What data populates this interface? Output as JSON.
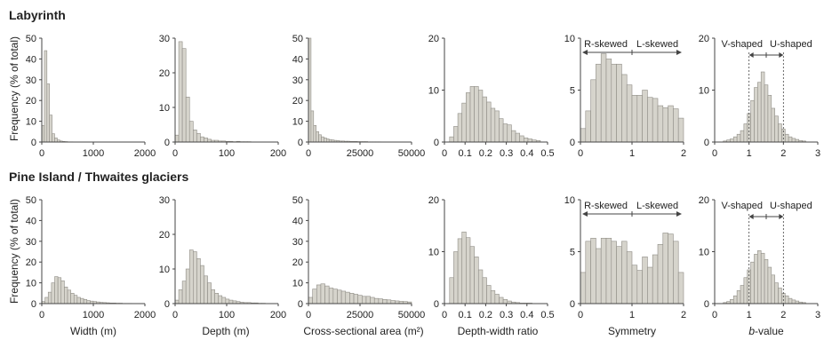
{
  "colors": {
    "bar_fill": "#d6d4cc",
    "bar_stroke": "#8f8d86",
    "axis": "#444444"
  },
  "rows": [
    {
      "title": "Labyrinth"
    },
    {
      "title": "Pine Island / Thwaites glaciers"
    }
  ],
  "ylabel": "Frequency (% of total)",
  "annotations": {
    "r_skewed": "R-skewed",
    "l_skewed": "L-skewed",
    "v_shaped": "V-shaped",
    "u_shaped": "U-shaped"
  },
  "columns": [
    {
      "xlabel": "Width (m)",
      "xlim": [
        0,
        2000
      ],
      "xticks": [
        "0",
        "1000",
        "2000"
      ],
      "ylim": [
        0,
        50
      ],
      "yticks": [
        "0",
        "10",
        "20",
        "30",
        "40",
        "50"
      ]
    },
    {
      "xlabel": "Depth (m)",
      "xlim": [
        0,
        200
      ],
      "xticks": [
        "0",
        "100",
        "200"
      ],
      "ylim": [
        0,
        30
      ],
      "yticks": [
        "0",
        "10",
        "20",
        "30"
      ]
    },
    {
      "xlabel": "Cross-sectional area (m²)",
      "xlim": [
        0,
        50000
      ],
      "xticks": [
        "0",
        "25000",
        "50000"
      ],
      "ylim": [
        0,
        50
      ],
      "yticks": [
        "0",
        "10",
        "20",
        "30",
        "40",
        "50"
      ]
    },
    {
      "xlabel": "Depth-width ratio",
      "xlim": [
        0,
        0.5
      ],
      "xticks": [
        "0",
        "0.1",
        "0.2",
        "0.3",
        "0.4",
        "0.5"
      ],
      "ylim": [
        0,
        20
      ],
      "yticks": [
        "0",
        "10",
        "20"
      ]
    },
    {
      "xlabel": "Symmetry",
      "xlim": [
        0,
        2
      ],
      "xticks": [
        "0",
        "1",
        "2"
      ],
      "ylim": [
        0,
        10
      ],
      "yticks": [
        "0",
        "5",
        "10"
      ]
    },
    {
      "xlabel": "b-value",
      "xlabel_italic": "b",
      "xlabel_rest": "-value",
      "xlim": [
        0,
        3
      ],
      "xticks": [
        "0",
        "1",
        "2",
        "3"
      ],
      "ylim": [
        0,
        20
      ],
      "yticks": [
        "0",
        "10",
        "20"
      ]
    }
  ],
  "chart_data": [
    {
      "type": "bar",
      "title": "Labyrinth",
      "xlabel": "Width (m)",
      "ylabel": "Frequency (% of total)",
      "xlim": [
        0,
        2000
      ],
      "ylim": [
        0,
        50
      ],
      "bin_start": 0,
      "bin_width": 50,
      "values": [
        8,
        44,
        28,
        13,
        4,
        2,
        1,
        0.5,
        0.3,
        0.2,
        0.1,
        0.1
      ]
    },
    {
      "type": "bar",
      "title": "Labyrinth",
      "xlabel": "Depth (m)",
      "ylabel": "Frequency (% of total)",
      "xlim": [
        0,
        200
      ],
      "ylim": [
        0,
        30
      ],
      "bin_start": 0,
      "bin_width": 7,
      "values": [
        2,
        29,
        27,
        13,
        6,
        3.5,
        2.5,
        1.5,
        1.2,
        0.8,
        0.5,
        0.5,
        0.3,
        0.3,
        0.2,
        0.2,
        0.1,
        0.2,
        0.1,
        0.1,
        0.1
      ]
    },
    {
      "type": "bar",
      "title": "Labyrinth",
      "xlabel": "Cross-sectional area (m²)",
      "ylabel": "Frequency (% of total)",
      "xlim": [
        0,
        50000
      ],
      "ylim": [
        0,
        50
      ],
      "bin_start": 0,
      "bin_width": 1250,
      "values": [
        50,
        15,
        8,
        5,
        3.5,
        2.5,
        2,
        1.5,
        1.2,
        1,
        0.8,
        0.7,
        0.5,
        0.5,
        0.4,
        0.4,
        0.3,
        0.3,
        0.3,
        0.2,
        0.2,
        0.2,
        0.2,
        0.1,
        0.1,
        0.1,
        0.1,
        0.1
      ]
    },
    {
      "type": "bar",
      "title": "Labyrinth",
      "xlabel": "Depth-width ratio",
      "ylabel": "Frequency (% of total)",
      "xlim": [
        0,
        0.5
      ],
      "ylim": [
        0,
        20
      ],
      "bin_start": 0.025,
      "bin_width": 0.02,
      "values": [
        1,
        3,
        5.5,
        7.5,
        9.5,
        10.7,
        10.7,
        10,
        8.7,
        7.7,
        6.5,
        6,
        4.5,
        3.5,
        3.3,
        2.2,
        1.7,
        1.2,
        0.8,
        0.6,
        0.4,
        0.3
      ]
    },
    {
      "type": "bar",
      "title": "Labyrinth",
      "xlabel": "Symmetry",
      "ylabel": "Frequency (% of total)",
      "xlim": [
        0,
        2
      ],
      "ylim": [
        0,
        10
      ],
      "bin_start": 0,
      "bin_width": 0.1,
      "values": [
        1.3,
        3,
        6,
        7.5,
        8.5,
        8,
        7.5,
        7.5,
        6.5,
        5.5,
        4.5,
        4.5,
        5,
        4.3,
        4.2,
        3.5,
        3.3,
        3.5,
        3.2,
        2.3
      ]
    },
    {
      "type": "bar",
      "title": "Labyrinth",
      "xlabel": "b-value",
      "ylabel": "Frequency (% of total)",
      "xlim": [
        0,
        3
      ],
      "ylim": [
        0,
        20
      ],
      "bin_start": 0.25,
      "bin_width": 0.1,
      "values": [
        0.2,
        0.4,
        0.6,
        1,
        1.5,
        2.2,
        3.5,
        5.5,
        8,
        10.5,
        11.5,
        13.5,
        11,
        9,
        6.5,
        5,
        3.5,
        2.5,
        1.5,
        1,
        0.7,
        0.5,
        0.3,
        0.2
      ]
    },
    {
      "type": "bar",
      "title": "Pine Island / Thwaites glaciers",
      "xlabel": "Width (m)",
      "ylabel": "Frequency (% of total)",
      "xlim": [
        0,
        2000
      ],
      "ylim": [
        0,
        50
      ],
      "bin_start": 0,
      "bin_width": 62.5,
      "values": [
        1,
        3,
        5.5,
        10,
        13,
        12.5,
        11,
        8,
        6.5,
        5,
        4,
        3,
        2.5,
        2,
        1.5,
        1.2,
        1,
        0.8,
        0.6,
        0.5,
        0.4,
        0.3,
        0.3,
        0.2,
        0.2,
        0.1,
        0.1,
        0.1
      ]
    },
    {
      "type": "bar",
      "title": "Pine Island / Thwaites glaciers",
      "xlabel": "Depth (m)",
      "ylabel": "Frequency (% of total)",
      "xlim": [
        0,
        200
      ],
      "ylim": [
        0,
        30
      ],
      "bin_start": 0,
      "bin_width": 7,
      "values": [
        1,
        4,
        6.5,
        10,
        15.5,
        15,
        13,
        11,
        8,
        6,
        4,
        3,
        2.3,
        1.8,
        1.3,
        1,
        0.8,
        0.6,
        0.4,
        0.3,
        0.3,
        0.2,
        0.2,
        0.1,
        0.1
      ]
    },
    {
      "type": "bar",
      "title": "Pine Island / Thwaites glaciers",
      "xlabel": "Cross-sectional area (m²)",
      "ylabel": "Frequency (% of total)",
      "xlim": [
        0,
        50000
      ],
      "ylim": [
        0,
        50
      ],
      "bin_start": 0,
      "bin_width": 2000,
      "values": [
        3,
        7,
        9,
        9.5,
        8.5,
        7.5,
        7,
        6.5,
        6,
        5.5,
        5,
        4.5,
        4,
        3.5,
        3.5,
        3,
        2.5,
        2.3,
        2,
        1.8,
        1.5,
        1.3,
        1.1,
        1,
        0.8
      ]
    },
    {
      "type": "bar",
      "title": "Pine Island / Thwaites glaciers",
      "xlabel": "Depth-width ratio",
      "ylabel": "Frequency (% of total)",
      "xlim": [
        0,
        0.5
      ],
      "ylim": [
        0,
        20
      ],
      "bin_start": 0.025,
      "bin_width": 0.02,
      "values": [
        5,
        10,
        12.5,
        13.8,
        12.7,
        11,
        9,
        6.5,
        5,
        3.5,
        2.5,
        1.8,
        1.2,
        0.8,
        0.5,
        0.3,
        0.2,
        0.1,
        0.1,
        0.1
      ]
    },
    {
      "type": "bar",
      "title": "Pine Island / Thwaites glaciers",
      "xlabel": "Symmetry",
      "ylabel": "Frequency (% of total)",
      "xlim": [
        0,
        2
      ],
      "ylim": [
        0,
        10
      ],
      "bin_start": 0,
      "bin_width": 0.1,
      "values": [
        3,
        6,
        6.3,
        5.3,
        6.3,
        6.3,
        6,
        5.5,
        6,
        5,
        3.7,
        3.2,
        4.5,
        3.5,
        4.7,
        5.7,
        6.8,
        6.7,
        6,
        3
      ]
    },
    {
      "type": "bar",
      "title": "Pine Island / Thwaites glaciers",
      "xlabel": "b-value",
      "ylabel": "Frequency (% of total)",
      "xlim": [
        0,
        3
      ],
      "ylim": [
        0,
        20
      ],
      "bin_start": 0.25,
      "bin_width": 0.1,
      "values": [
        0.2,
        0.4,
        0.8,
        1.5,
        2.5,
        3.5,
        5,
        6.5,
        8,
        9.5,
        10.2,
        9.7,
        8.5,
        7,
        5.5,
        4,
        3,
        2,
        1.5,
        1,
        0.7,
        0.5,
        0.3,
        0.2
      ]
    }
  ]
}
